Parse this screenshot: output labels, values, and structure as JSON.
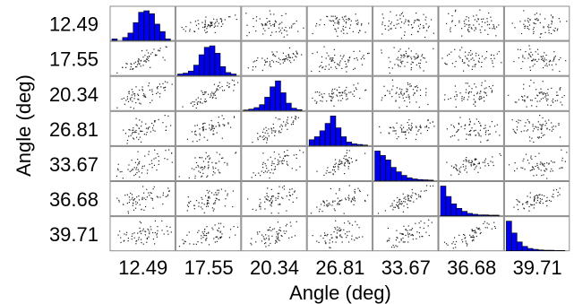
{
  "chart_data": {
    "type": "scatter-matrix",
    "variables": [
      "12.49",
      "17.55",
      "20.34",
      "26.81",
      "33.67",
      "36.68",
      "39.71"
    ],
    "xlabel": "Angle (deg)",
    "ylabel": "Angle (deg)",
    "diagonal": "histogram",
    "histogram_color": "#0000ee",
    "point_color": "#222222",
    "grid": false,
    "histograms": [
      [
        0.05,
        0.0,
        0.1,
        0.25,
        0.6,
        0.95,
        1.0,
        0.9,
        0.55,
        0.3,
        0.05
      ],
      [
        0.05,
        0.08,
        0.15,
        0.35,
        0.7,
        0.95,
        1.0,
        0.75,
        0.3,
        0.1,
        0.05
      ],
      [
        0.02,
        0.05,
        0.1,
        0.2,
        0.45,
        0.8,
        1.0,
        0.6,
        0.25,
        0.08,
        0.03
      ],
      [
        0.2,
        0.3,
        0.5,
        0.75,
        1.0,
        0.6,
        0.3,
        0.12,
        0.06,
        0.04,
        0.02
      ],
      [
        1.0,
        0.85,
        0.7,
        0.45,
        0.3,
        0.18,
        0.1,
        0.06,
        0.04,
        0.03,
        0.02
      ],
      [
        1.0,
        0.65,
        0.4,
        0.25,
        0.15,
        0.08,
        0.05,
        0.03,
        0.03,
        0.02,
        0.02
      ],
      [
        1.0,
        0.6,
        0.3,
        0.15,
        0.08,
        0.05,
        0.03,
        0.02,
        0.02,
        0.01,
        0.01
      ]
    ]
  }
}
